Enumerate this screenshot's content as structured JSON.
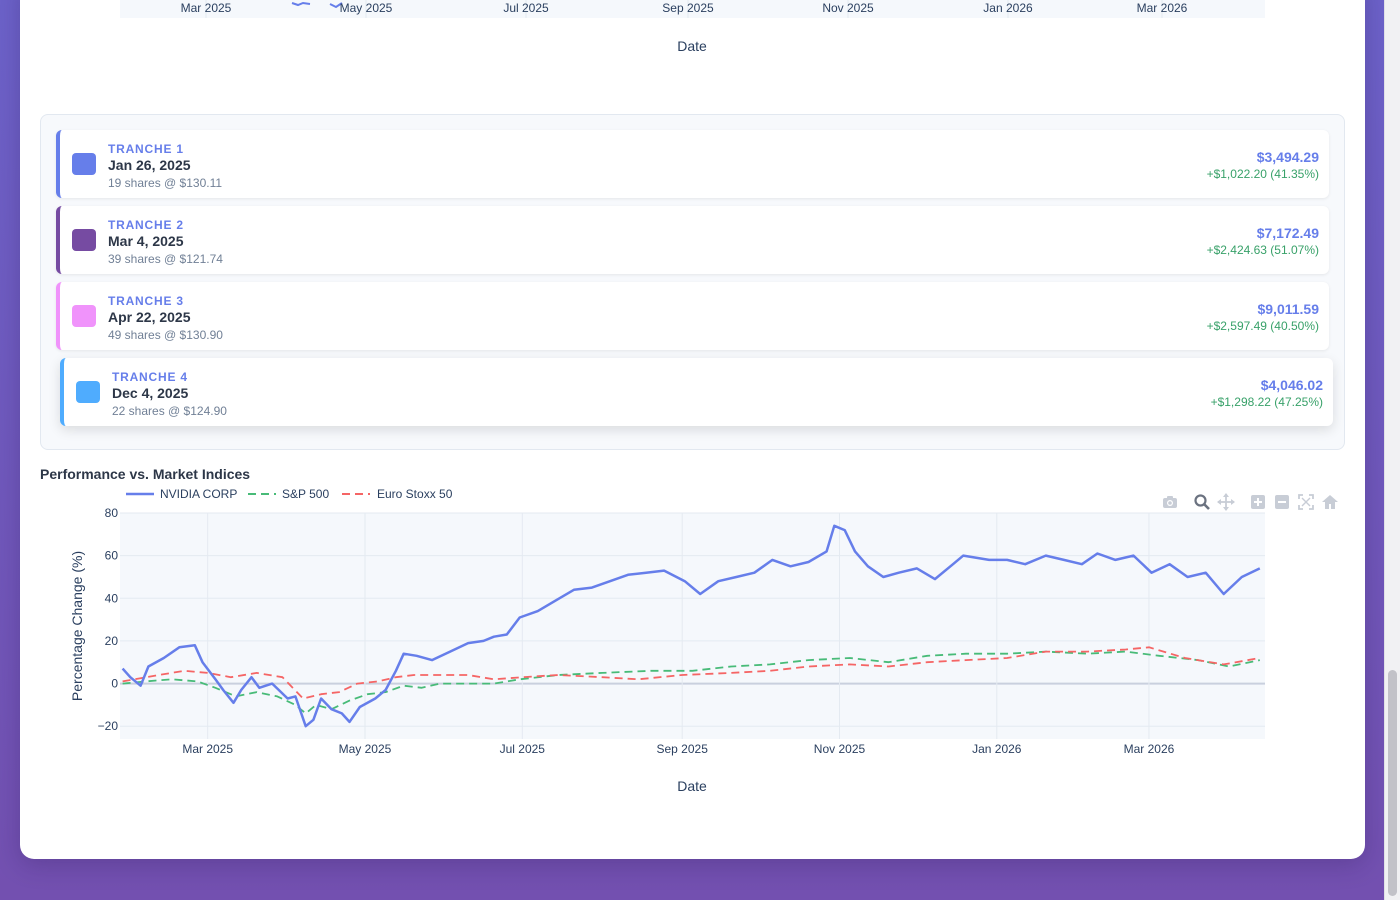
{
  "colors": {
    "nvidia": "#667eea",
    "sp500": "#48bb78",
    "stoxx": "#f56565",
    "tranche1": "#667eea",
    "tranche2": "#764ba2",
    "tranche3": "#f093fb",
    "tranche4": "#4facfe"
  },
  "top_chart": {
    "x_ticks": [
      "Mar 2025",
      "May 2025",
      "Jul 2025",
      "Sep 2025",
      "Nov 2025",
      "Jan 2026",
      "Mar 2026"
    ],
    "xlabel": "Date"
  },
  "tranches": [
    {
      "label": "TRANCHE 1",
      "date": "Jan 26, 2025",
      "shares": "19 shares @ $130.11",
      "value": "$3,494.29",
      "gain": "+$1,022.20 (41.35%)"
    },
    {
      "label": "TRANCHE 2",
      "date": "Mar 4, 2025",
      "shares": "39 shares @ $121.74",
      "value": "$7,172.49",
      "gain": "+$2,424.63 (51.07%)"
    },
    {
      "label": "TRANCHE 3",
      "date": "Apr 22, 2025",
      "shares": "49 shares @ $130.90",
      "value": "$9,011.59",
      "gain": "+$2,597.49 (40.50%)"
    },
    {
      "label": "TRANCHE 4",
      "date": "Dec 4, 2025",
      "shares": "22 shares @ $124.90",
      "value": "$4,046.02",
      "gain": "+$1,298.22 (47.25%)"
    }
  ],
  "performance": {
    "title": "Performance vs. Market Indices"
  },
  "modebar": [
    "camera-icon",
    "zoom-icon",
    "pan-icon",
    "zoom-in-icon",
    "zoom-out-icon",
    "autoscale-icon",
    "reset-axes-icon"
  ],
  "chart_data": {
    "type": "line",
    "title": "",
    "xlabel": "Date",
    "ylabel": "Percentage Change (%)",
    "xlim": [
      "2025-01-26",
      "2026-04-15"
    ],
    "ylim": [
      -26,
      80
    ],
    "y_ticks": [
      -20,
      0,
      20,
      40,
      60,
      80
    ],
    "x_ticks": [
      "Mar 2025",
      "May 2025",
      "Jul 2025",
      "Sep 2025",
      "Nov 2025",
      "Jan 2026",
      "Mar 2026"
    ],
    "x_tick_dates": [
      "2025-03-01",
      "2025-05-01",
      "2025-07-01",
      "2025-09-01",
      "2025-11-01",
      "2026-01-01",
      "2026-03-01"
    ],
    "legend_position": "top-left",
    "grid": true,
    "series": [
      {
        "name": "NVIDIA CORP",
        "dash": "solid",
        "points": [
          [
            "2025-01-27",
            7
          ],
          [
            "2025-01-30",
            3
          ],
          [
            "2025-02-03",
            -1
          ],
          [
            "2025-02-06",
            8
          ],
          [
            "2025-02-12",
            12
          ],
          [
            "2025-02-18",
            17
          ],
          [
            "2025-02-24",
            18
          ],
          [
            "2025-02-27",
            10
          ],
          [
            "2025-03-04",
            2
          ],
          [
            "2025-03-07",
            -3
          ],
          [
            "2025-03-11",
            -9
          ],
          [
            "2025-03-14",
            -3
          ],
          [
            "2025-03-18",
            3
          ],
          [
            "2025-03-21",
            -2
          ],
          [
            "2025-03-26",
            0
          ],
          [
            "2025-04-01",
            -7
          ],
          [
            "2025-04-04",
            -6
          ],
          [
            "2025-04-08",
            -20
          ],
          [
            "2025-04-11",
            -17
          ],
          [
            "2025-04-14",
            -7
          ],
          [
            "2025-04-18",
            -12
          ],
          [
            "2025-04-22",
            -14
          ],
          [
            "2025-04-25",
            -18
          ],
          [
            "2025-04-29",
            -11
          ],
          [
            "2025-05-05",
            -7
          ],
          [
            "2025-05-09",
            -3
          ],
          [
            "2025-05-13",
            6
          ],
          [
            "2025-05-16",
            14
          ],
          [
            "2025-05-21",
            13
          ],
          [
            "2025-05-27",
            11
          ],
          [
            "2025-06-03",
            15
          ],
          [
            "2025-06-10",
            19
          ],
          [
            "2025-06-16",
            20
          ],
          [
            "2025-06-20",
            22
          ],
          [
            "2025-06-25",
            23
          ],
          [
            "2025-06-30",
            31
          ],
          [
            "2025-07-07",
            34
          ],
          [
            "2025-07-14",
            39
          ],
          [
            "2025-07-21",
            44
          ],
          [
            "2025-07-28",
            45
          ],
          [
            "2025-08-04",
            48
          ],
          [
            "2025-08-11",
            51
          ],
          [
            "2025-08-18",
            52
          ],
          [
            "2025-08-25",
            53
          ],
          [
            "2025-09-02",
            48
          ],
          [
            "2025-09-08",
            42
          ],
          [
            "2025-09-15",
            48
          ],
          [
            "2025-09-22",
            50
          ],
          [
            "2025-09-29",
            52
          ],
          [
            "2025-10-06",
            58
          ],
          [
            "2025-10-13",
            55
          ],
          [
            "2025-10-20",
            57
          ],
          [
            "2025-10-27",
            62
          ],
          [
            "2025-10-30",
            74
          ],
          [
            "2025-11-03",
            72
          ],
          [
            "2025-11-07",
            62
          ],
          [
            "2025-11-12",
            55
          ],
          [
            "2025-11-18",
            50
          ],
          [
            "2025-11-24",
            52
          ],
          [
            "2025-12-01",
            54
          ],
          [
            "2025-12-08",
            49
          ],
          [
            "2025-12-15",
            56
          ],
          [
            "2025-12-19",
            60
          ],
          [
            "2025-12-29",
            58
          ],
          [
            "2026-01-05",
            58
          ],
          [
            "2026-01-12",
            56
          ],
          [
            "2026-01-20",
            60
          ],
          [
            "2026-01-27",
            58
          ],
          [
            "2026-02-03",
            56
          ],
          [
            "2026-02-09",
            61
          ],
          [
            "2026-02-16",
            58
          ],
          [
            "2026-02-23",
            60
          ],
          [
            "2026-03-02",
            52
          ],
          [
            "2026-03-09",
            56
          ],
          [
            "2026-03-16",
            50
          ],
          [
            "2026-03-23",
            52
          ],
          [
            "2026-03-30",
            42
          ],
          [
            "2026-04-06",
            50
          ],
          [
            "2026-04-13",
            54
          ]
        ]
      },
      {
        "name": "S&P 500",
        "dash": "dash",
        "points": [
          [
            "2025-01-27",
            0
          ],
          [
            "2025-02-05",
            1
          ],
          [
            "2025-02-15",
            2
          ],
          [
            "2025-02-25",
            1
          ],
          [
            "2025-03-04",
            -2
          ],
          [
            "2025-03-12",
            -6
          ],
          [
            "2025-03-20",
            -4
          ],
          [
            "2025-03-28",
            -6
          ],
          [
            "2025-04-04",
            -10
          ],
          [
            "2025-04-08",
            -14
          ],
          [
            "2025-04-12",
            -10
          ],
          [
            "2025-04-18",
            -12
          ],
          [
            "2025-04-25",
            -8
          ],
          [
            "2025-05-02",
            -5
          ],
          [
            "2025-05-09",
            -4
          ],
          [
            "2025-05-16",
            -1
          ],
          [
            "2025-05-23",
            -2
          ],
          [
            "2025-05-30",
            0
          ],
          [
            "2025-06-10",
            0
          ],
          [
            "2025-06-20",
            0
          ],
          [
            "2025-06-30",
            2
          ],
          [
            "2025-07-15",
            4
          ],
          [
            "2025-08-01",
            5
          ],
          [
            "2025-08-20",
            6
          ],
          [
            "2025-09-05",
            6
          ],
          [
            "2025-09-20",
            8
          ],
          [
            "2025-10-05",
            9
          ],
          [
            "2025-10-20",
            11
          ],
          [
            "2025-11-05",
            12
          ],
          [
            "2025-11-20",
            10
          ],
          [
            "2025-12-05",
            13
          ],
          [
            "2025-12-20",
            14
          ],
          [
            "2026-01-05",
            14
          ],
          [
            "2026-01-20",
            15
          ],
          [
            "2026-02-05",
            14
          ],
          [
            "2026-02-20",
            15
          ],
          [
            "2026-03-05",
            13
          ],
          [
            "2026-03-20",
            11
          ],
          [
            "2026-04-01",
            8
          ],
          [
            "2026-04-13",
            11
          ]
        ]
      },
      {
        "name": "Euro Stoxx 50",
        "dash": "dash",
        "points": [
          [
            "2025-01-27",
            1
          ],
          [
            "2025-02-10",
            4
          ],
          [
            "2025-02-20",
            6
          ],
          [
            "2025-03-01",
            5
          ],
          [
            "2025-03-10",
            3
          ],
          [
            "2025-03-20",
            5
          ],
          [
            "2025-03-30",
            3
          ],
          [
            "2025-04-07",
            -7
          ],
          [
            "2025-04-14",
            -5
          ],
          [
            "2025-04-21",
            -4
          ],
          [
            "2025-04-28",
            0
          ],
          [
            "2025-05-06",
            1
          ],
          [
            "2025-05-13",
            3
          ],
          [
            "2025-05-20",
            4
          ],
          [
            "2025-05-28",
            4
          ],
          [
            "2025-06-10",
            4
          ],
          [
            "2025-06-20",
            2
          ],
          [
            "2025-07-01",
            3
          ],
          [
            "2025-07-15",
            4
          ],
          [
            "2025-08-01",
            3
          ],
          [
            "2025-08-15",
            2
          ],
          [
            "2025-09-01",
            4
          ],
          [
            "2025-09-20",
            5
          ],
          [
            "2025-10-05",
            6
          ],
          [
            "2025-10-20",
            8
          ],
          [
            "2025-11-05",
            9
          ],
          [
            "2025-11-20",
            8
          ],
          [
            "2025-12-05",
            10
          ],
          [
            "2025-12-20",
            11
          ],
          [
            "2026-01-05",
            12
          ],
          [
            "2026-01-20",
            15
          ],
          [
            "2026-02-05",
            15
          ],
          [
            "2026-02-20",
            16
          ],
          [
            "2026-03-01",
            17
          ],
          [
            "2026-03-15",
            12
          ],
          [
            "2026-03-30",
            9
          ],
          [
            "2026-04-13",
            12
          ]
        ]
      }
    ]
  }
}
